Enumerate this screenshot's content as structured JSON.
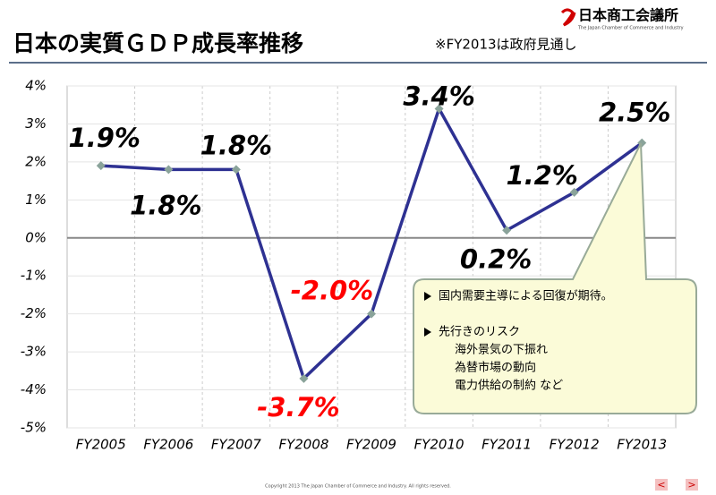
{
  "chart_data": {
    "type": "line",
    "title": "日本の実質ＧＤＰ成長率推移",
    "note": "※FY2013は政府見通し",
    "categories": [
      "FY2005",
      "FY2006",
      "FY2007",
      "FY2008",
      "FY2009",
      "FY2010",
      "FY2011",
      "FY2012",
      "FY2013"
    ],
    "values": [
      1.9,
      1.8,
      1.8,
      -3.7,
      -2.0,
      3.4,
      0.2,
      1.2,
      2.5
    ],
    "value_labels": [
      "1.9%",
      "1.8%",
      "1.8%",
      "-3.7%",
      "-2.0%",
      "3.4%",
      "0.2%",
      "1.2%",
      "2.5%"
    ],
    "color": "#2e3192",
    "marker_color": "#8aa39a",
    "label_color": "#000000",
    "negative_label_color": "#ff0000",
    "ylim": [
      -5,
      4
    ],
    "yticks": [
      {
        "value": -5,
        "label": "-5%"
      },
      {
        "value": -4,
        "label": "-4%"
      },
      {
        "value": -3,
        "label": "-3%"
      },
      {
        "value": -2,
        "label": "-2%"
      },
      {
        "value": -1,
        "label": "-1%"
      },
      {
        "value": 0,
        "label": "0%"
      },
      {
        "value": 1,
        "label": "1%"
      },
      {
        "value": 2,
        "label": "2%"
      },
      {
        "value": 3,
        "label": "3%"
      },
      {
        "value": 4,
        "label": "4%"
      }
    ],
    "grid": true
  },
  "logo": {
    "name": "日本商工会議所",
    "subtitle": "The Japan Chamber of Commerce and Industry"
  },
  "callout": {
    "item1": "国内需要主導による回復が期待。",
    "item2": "先行きのリスク",
    "risks": [
      "海外景気の下振れ",
      "為替市場の動向",
      "電力供給の制約 など"
    ]
  },
  "footer": "Copyright 2013 The Japan Chamber of Commerce and Industry. All rights reserved.",
  "nav": {
    "prev": "<",
    "next": ">"
  }
}
